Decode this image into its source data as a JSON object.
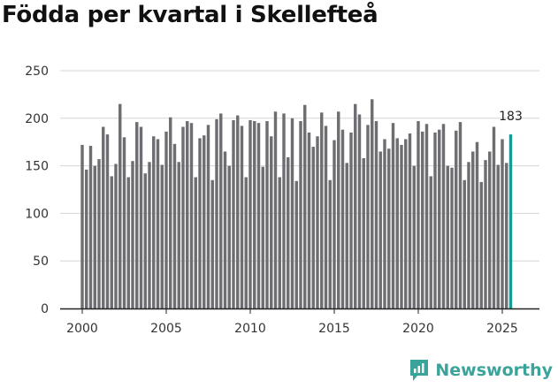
{
  "chart_data": {
    "type": "bar",
    "title": "Födda per kvartal i Skellefteå",
    "xlabel": "",
    "ylabel": "",
    "ylim": [
      0,
      250
    ],
    "y_ticks": [
      0,
      50,
      100,
      150,
      200,
      250
    ],
    "x_ticks": [
      2000,
      2005,
      2010,
      2015,
      2020,
      2025
    ],
    "start_year": 2000,
    "grid": true,
    "highlight_label": "183",
    "values": [
      172,
      146,
      171,
      150,
      157,
      191,
      183,
      139,
      152,
      215,
      180,
      138,
      155,
      196,
      191,
      142,
      154,
      181,
      178,
      151,
      186,
      201,
      173,
      154,
      191,
      197,
      195,
      138,
      179,
      182,
      193,
      135,
      199,
      205,
      165,
      150,
      198,
      203,
      192,
      138,
      198,
      197,
      195,
      149,
      197,
      181,
      207,
      138,
      205,
      159,
      200,
      134,
      197,
      214,
      185,
      170,
      181,
      206,
      192,
      135,
      177,
      207,
      188,
      153,
      185,
      215,
      204,
      158,
      193,
      220,
      197,
      165,
      178,
      168,
      195,
      179,
      172,
      178,
      184,
      150,
      197,
      186,
      194,
      139,
      185,
      188,
      194,
      150,
      148,
      187,
      196,
      135,
      154,
      165,
      175,
      133,
      156,
      165,
      191,
      151,
      178,
      153,
      183
    ],
    "colors": {
      "bar": "#6e6e72",
      "highlight": "#1a9a93",
      "grid": "#d6d6d6",
      "axis": "#222222"
    }
  },
  "branding": {
    "name": "Newsworthy"
  }
}
